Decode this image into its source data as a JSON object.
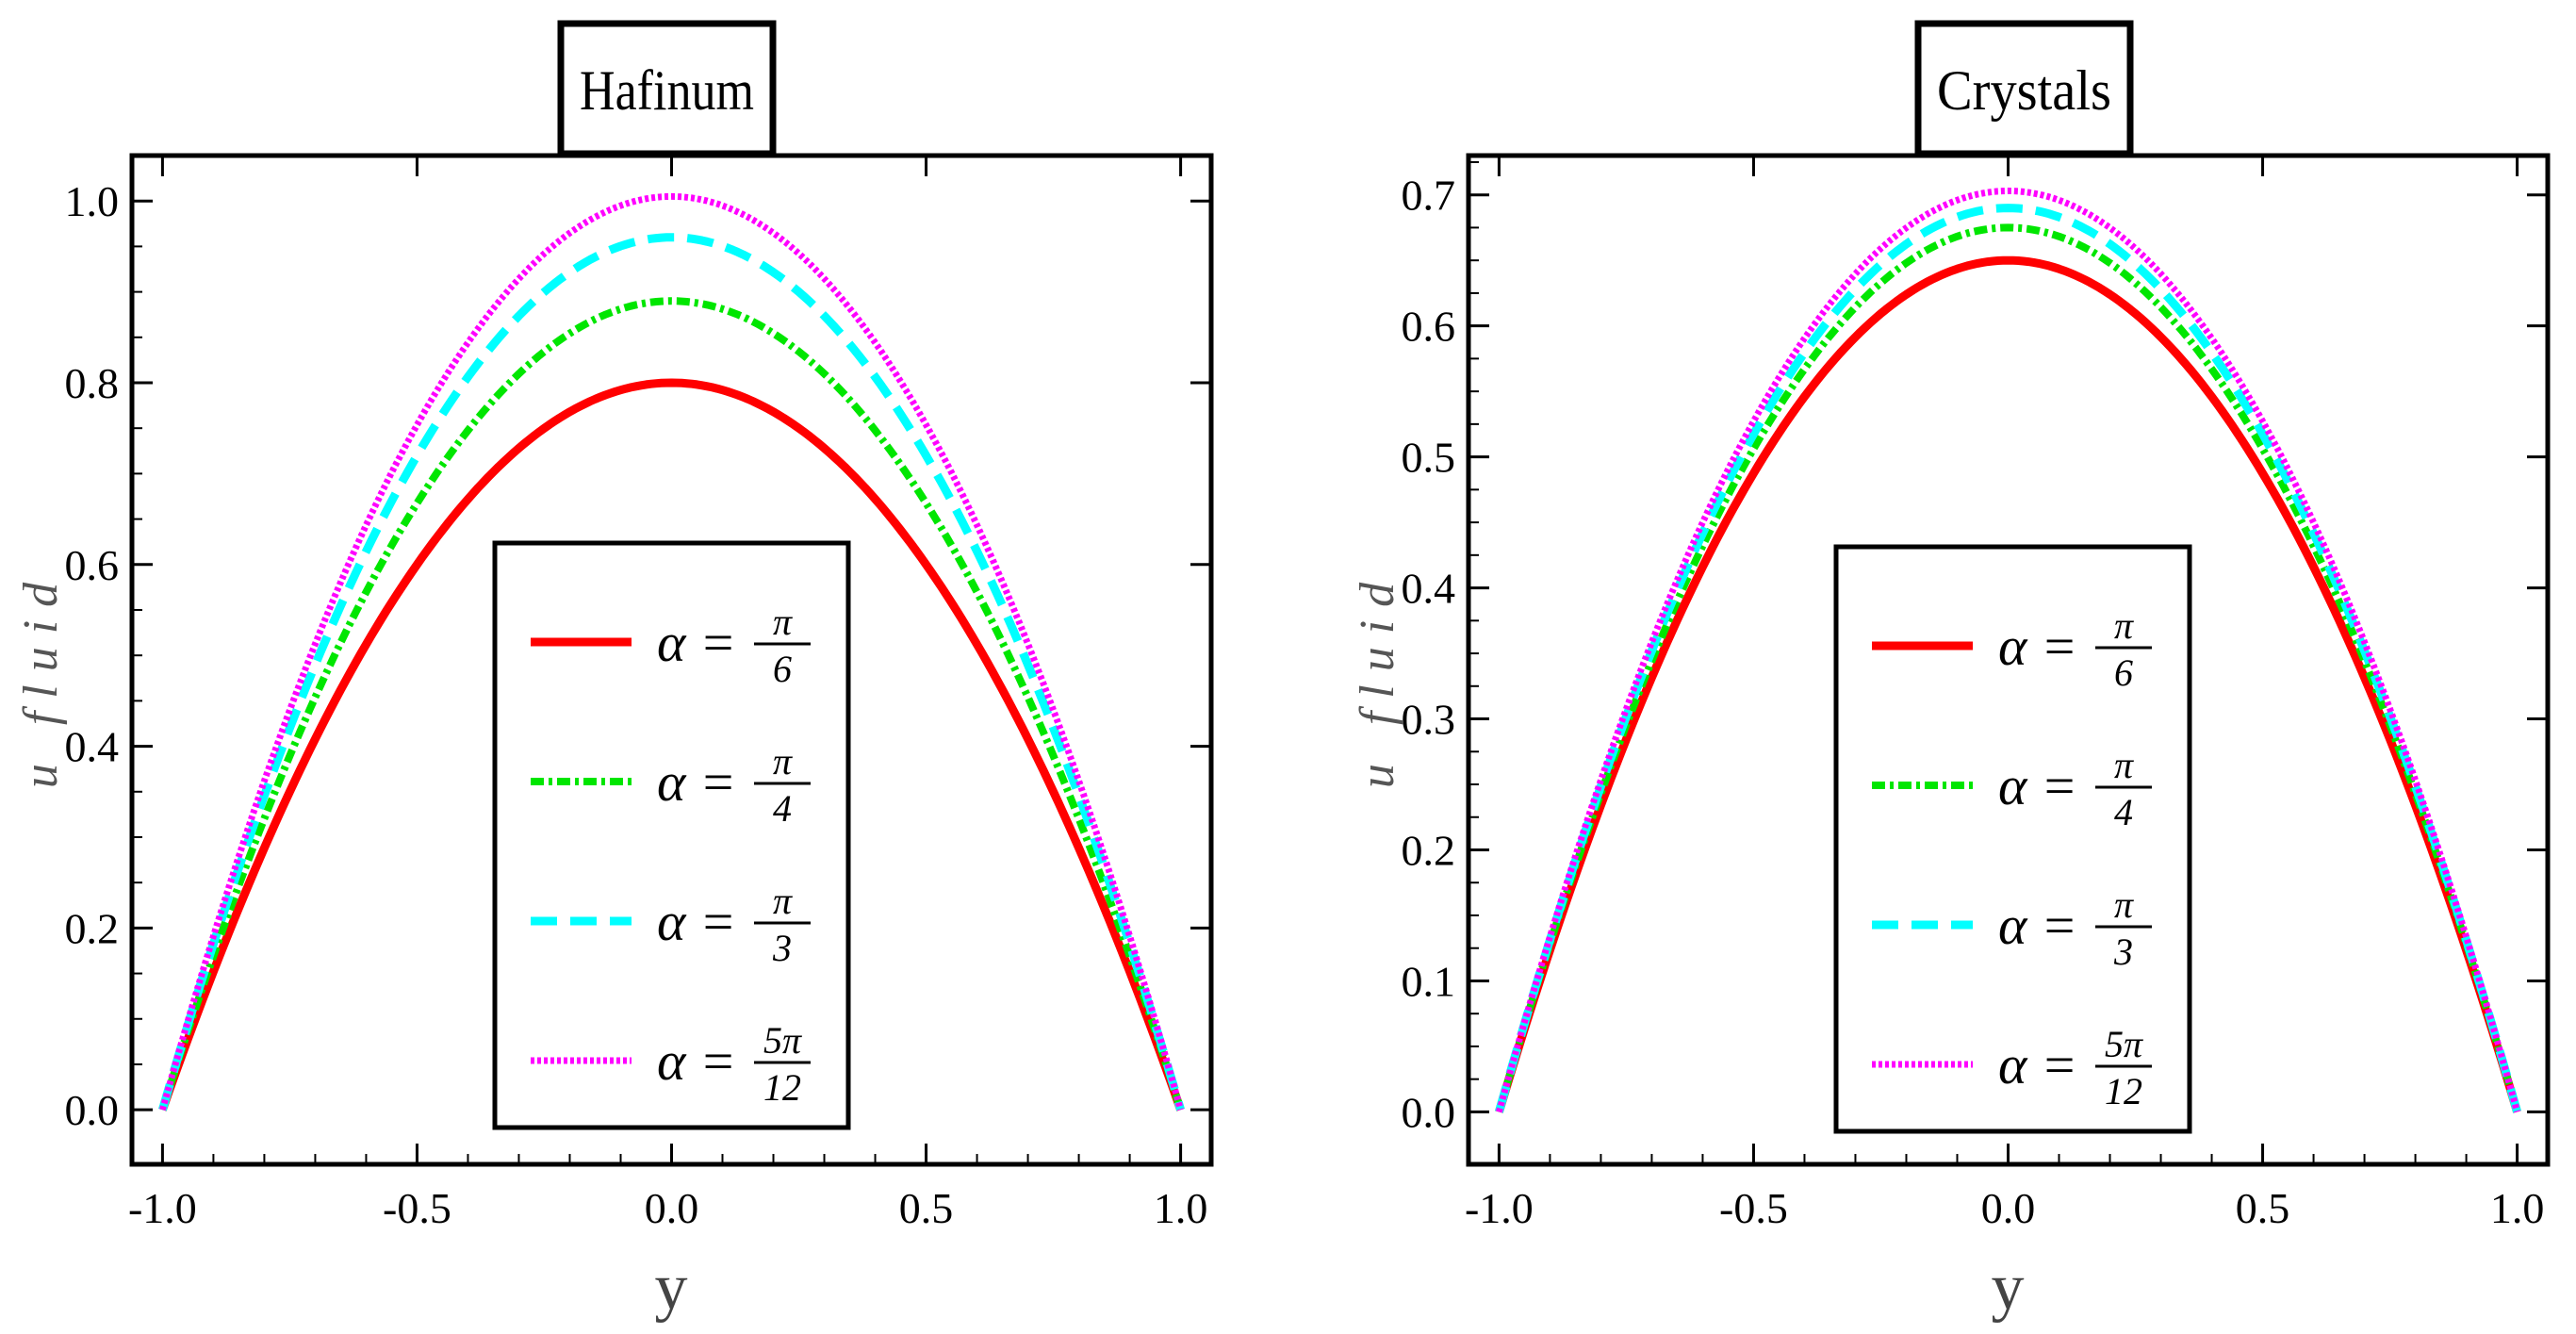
{
  "chart_data": [
    {
      "type": "line",
      "title": "Hafinum",
      "xlabel": "y",
      "ylabel": "u fluid",
      "xlim": [
        -1.0,
        1.0
      ],
      "ylim": [
        -0.06,
        1.05
      ],
      "x_ticks": [
        "-1.0",
        "-0.5",
        "0.0",
        "0.5",
        "1.0"
      ],
      "x_tick_values": [
        -1.0,
        -0.5,
        0.0,
        0.5,
        1.0
      ],
      "y_ticks": [
        "0.0",
        "0.2",
        "0.4",
        "0.6",
        "0.8",
        "1.0"
      ],
      "y_tick_values": [
        0.0,
        0.2,
        0.4,
        0.6,
        0.8,
        1.0
      ],
      "series": [
        {
          "name": "α = π/6",
          "lhs": "α =",
          "num": "π",
          "den": "6",
          "peak": 0.8,
          "color": "#ff0000",
          "style": "solid"
        },
        {
          "name": "α = π/4",
          "lhs": "α =",
          "num": "π",
          "den": "4",
          "peak": 0.89,
          "color": "#00e600",
          "style": "dashdot"
        },
        {
          "name": "α = π/3",
          "lhs": "α =",
          "num": "π",
          "den": "3",
          "peak": 0.96,
          "color": "#00ffff",
          "style": "dashed"
        },
        {
          "name": "α = 5π/12",
          "lhs": "α =",
          "num": "5π",
          "den": "12",
          "peak": 1.005,
          "color": "#ff00ff",
          "style": "dotted"
        }
      ]
    },
    {
      "type": "line",
      "title": "Crystals",
      "xlabel": "y",
      "ylabel": "u fluid",
      "xlim": [
        -1.0,
        1.0
      ],
      "ylim": [
        -0.04,
        0.73
      ],
      "x_ticks": [
        "-1.0",
        "-0.5",
        "0.0",
        "0.5",
        "1.0"
      ],
      "x_tick_values": [
        -1.0,
        -0.5,
        0.0,
        0.5,
        1.0
      ],
      "y_ticks": [
        "0.0",
        "0.1",
        "0.2",
        "0.3",
        "0.4",
        "0.5",
        "0.6",
        "0.7"
      ],
      "y_tick_values": [
        0.0,
        0.1,
        0.2,
        0.3,
        0.4,
        0.5,
        0.6,
        0.7
      ],
      "series": [
        {
          "name": "α = π/6",
          "lhs": "α =",
          "num": "π",
          "den": "6",
          "peak": 0.65,
          "color": "#ff0000",
          "style": "solid"
        },
        {
          "name": "α = π/4",
          "lhs": "α =",
          "num": "π",
          "den": "4",
          "peak": 0.675,
          "color": "#00e600",
          "style": "dashdot"
        },
        {
          "name": "α = π/3",
          "lhs": "α =",
          "num": "π",
          "den": "3",
          "peak": 0.69,
          "color": "#00ffff",
          "style": "dashed"
        },
        {
          "name": "α = 5π/12",
          "lhs": "α =",
          "num": "5π",
          "den": "12",
          "peak": 0.703,
          "color": "#ff00ff",
          "style": "dotted"
        }
      ]
    }
  ]
}
